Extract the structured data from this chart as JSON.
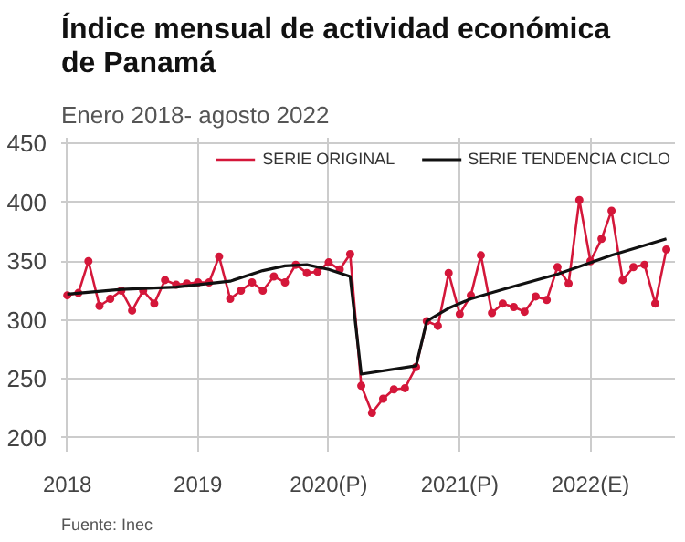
{
  "chart_data": {
    "type": "line",
    "title": "Índice mensual de actividad económica de Panamá",
    "subtitle": "Enero 2018- agosto 2022",
    "annotations": [
      "Fuente: Inec"
    ],
    "xlim": [
      "2017-12-15",
      "2022-08-25"
    ],
    "xticks": [
      {
        "value": "2018",
        "label": "2018"
      },
      {
        "value": "2019",
        "label": "2019"
      },
      {
        "value": "2020",
        "label": "2020(P)"
      },
      {
        "value": "2021",
        "label": "2021(P)"
      },
      {
        "value": "2022",
        "label": "2022(E)"
      }
    ],
    "ylim": [
      188,
      455
    ],
    "yticks": [
      200,
      250,
      300,
      350,
      400,
      450
    ],
    "grid": true,
    "legend": "top right",
    "series": [
      {
        "name": "SERIE ORIGINAL",
        "color": "#d4173a",
        "marker": "circle",
        "x": [
          "2018-01",
          "2018-02",
          "2018-03",
          "2018-04",
          "2018-05",
          "2018-06",
          "2018-07",
          "2018-08",
          "2018-09",
          "2018-10",
          "2018-11",
          "2018-12",
          "2019-01",
          "2019-02",
          "2019-03",
          "2019-04",
          "2019-05",
          "2019-06",
          "2019-07",
          "2019-08",
          "2019-09",
          "2019-10",
          "2019-11",
          "2019-12",
          "2020-01",
          "2020-02",
          "2020-03",
          "2020-04",
          "2020-05",
          "2020-06",
          "2020-07",
          "2020-08",
          "2020-09",
          "2020-10",
          "2020-11",
          "2020-12",
          "2021-01",
          "2021-02",
          "2021-03",
          "2021-04",
          "2021-05",
          "2021-06",
          "2021-07",
          "2021-08",
          "2021-09",
          "2021-10",
          "2021-11",
          "2021-12",
          "2022-01",
          "2022-02",
          "2022-03",
          "2022-04",
          "2022-05",
          "2022-06",
          "2022-07",
          "2022-08"
        ],
        "values": [
          321,
          323,
          350,
          312,
          318,
          325,
          308,
          325,
          314,
          334,
          330,
          331,
          332,
          332,
          354,
          318,
          325,
          332,
          325,
          337,
          332,
          347,
          340,
          341,
          349,
          343,
          356,
          244,
          221,
          233,
          241,
          242,
          260,
          299,
          295,
          340,
          305,
          321,
          355,
          306,
          314,
          311,
          307,
          320,
          317,
          345,
          331,
          402,
          350,
          369,
          393,
          334,
          345,
          347,
          314,
          360
        ]
      },
      {
        "name": "SERIE TENDENCIA CICLO",
        "color": "#111111",
        "marker": "none",
        "x": [
          "2018-01",
          "2018-06",
          "2018-11",
          "2019-04",
          "2019-07",
          "2019-09",
          "2019-11",
          "2020-01",
          "2020-03",
          "2020-04",
          "2020-09",
          "2020-10",
          "2020-12",
          "2021-02",
          "2021-05",
          "2021-10",
          "2022-03",
          "2022-08"
        ],
        "values": [
          322,
          326,
          328,
          333,
          342,
          346,
          347,
          343,
          337,
          254,
          261,
          299,
          310,
          318,
          326,
          339,
          355,
          369
        ]
      }
    ]
  }
}
